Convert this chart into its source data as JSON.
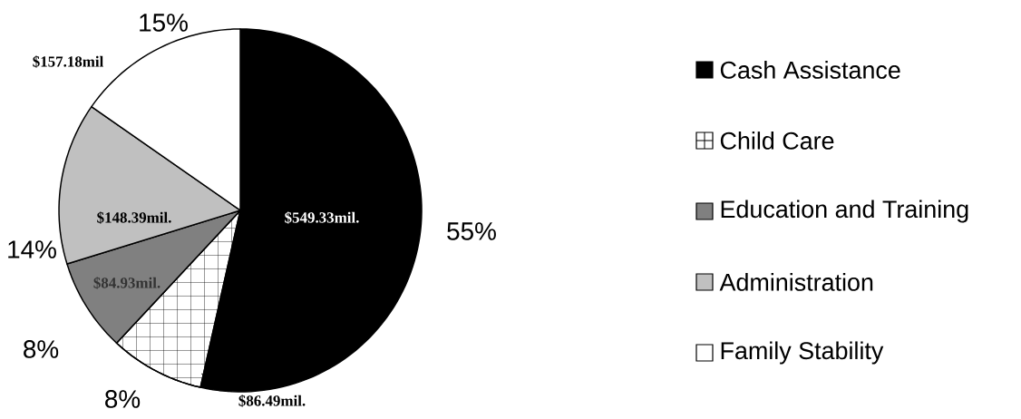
{
  "chart_data": {
    "type": "pie",
    "categories": [
      "Cash Assistance",
      "Child Care",
      "Education and Training",
      "Administration",
      "Family Stability"
    ],
    "values": [
      549.33,
      86.49,
      84.93,
      148.39,
      157.18
    ],
    "colors": [
      "#000000",
      "#ffffff",
      "#808080",
      "#c0c0c0",
      "#ffffff"
    ],
    "value_labels": [
      "$549.33mil.",
      "$86.49mil.",
      "$84.93mil.",
      "$148.39mil.",
      "$157.18mil"
    ],
    "annotations": [
      "55%",
      "8%",
      "8%",
      "14%",
      "15%"
    ],
    "legend": "right"
  }
}
